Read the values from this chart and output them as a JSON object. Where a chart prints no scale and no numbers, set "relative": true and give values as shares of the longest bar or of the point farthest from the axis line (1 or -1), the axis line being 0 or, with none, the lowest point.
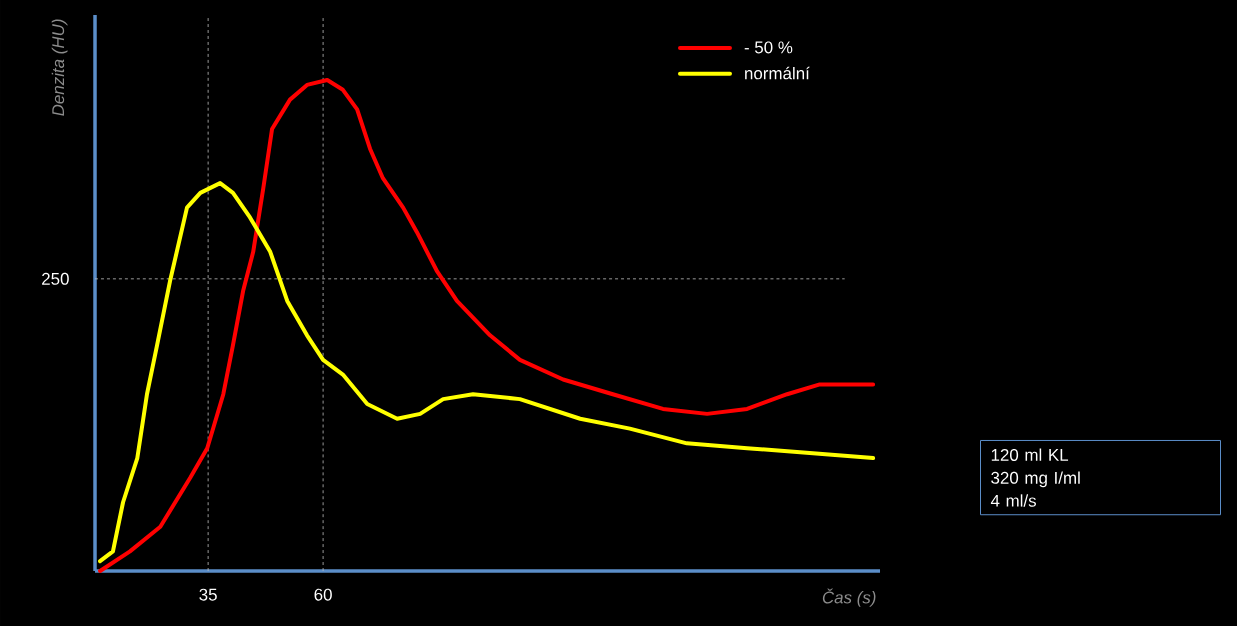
{
  "chart_data": {
    "type": "line",
    "relative": true,
    "xlabel": "Čas (s)",
    "ylabel": "Denzita (HU)",
    "xlim": [
      10.4,
      181.1
    ],
    "xticks": [
      35,
      60
    ],
    "legend": "top right",
    "line_style": "solid",
    "ref_lines": [
      {
        "axis": "y",
        "value": 0.595,
        "color": "#bfbfbf",
        "line_style": "dashed"
      },
      {
        "axis": "x",
        "value": 35,
        "color": "#bfbfbf",
        "line_style": "dashed"
      },
      {
        "axis": "x",
        "value": 60,
        "color": "#bfbfbf",
        "line_style": "dashed"
      }
    ],
    "annotations": [
      "250",
      "120 ml KL",
      "320 mg I/ml",
      "4 ml/s"
    ],
    "series": [
      {
        "name": "- 50 %",
        "color": "#ff0000",
        "x": [
          11.5,
          18.0,
          24.6,
          31.1,
          34.8,
          38.3,
          40.4,
          42.6,
          44.8,
          47.0,
          48.9,
          52.8,
          56.5,
          60.9,
          64.3,
          67.4,
          70.2,
          73.0,
          77.4,
          80.4,
          84.8,
          89.1,
          96.3,
          102.8,
          112.2,
          123.0,
          133.9,
          143.5,
          152.2,
          160.9,
          168.0,
          179.6
        ],
        "values": [
          0.0,
          0.04,
          0.09,
          0.19,
          0.25,
          0.36,
          0.46,
          0.57,
          0.65,
          0.78,
          0.9,
          0.96,
          0.99,
          1.0,
          0.98,
          0.94,
          0.86,
          0.8,
          0.74,
          0.69,
          0.61,
          0.55,
          0.48,
          0.43,
          0.39,
          0.36,
          0.33,
          0.32,
          0.33,
          0.36,
          0.38,
          0.38
        ]
      },
      {
        "name": "normální",
        "color": "#ffff00",
        "x": [
          11.5,
          14.3,
          16.5,
          19.6,
          21.7,
          23.9,
          26.7,
          30.4,
          33.3,
          37.6,
          40.4,
          44.1,
          48.5,
          52.2,
          56.5,
          60.0,
          64.3,
          69.6,
          76.1,
          81.1,
          86.1,
          92.6,
          102.8,
          115.9,
          126.7,
          139.1,
          152.2,
          166.5,
          179.6
        ],
        "values": [
          0.02,
          0.04,
          0.14,
          0.23,
          0.36,
          0.46,
          0.59,
          0.74,
          0.77,
          0.79,
          0.77,
          0.72,
          0.65,
          0.55,
          0.48,
          0.43,
          0.4,
          0.34,
          0.31,
          0.32,
          0.35,
          0.36,
          0.35,
          0.31,
          0.29,
          0.26,
          0.25,
          0.24,
          0.23
        ]
      }
    ]
  }
}
